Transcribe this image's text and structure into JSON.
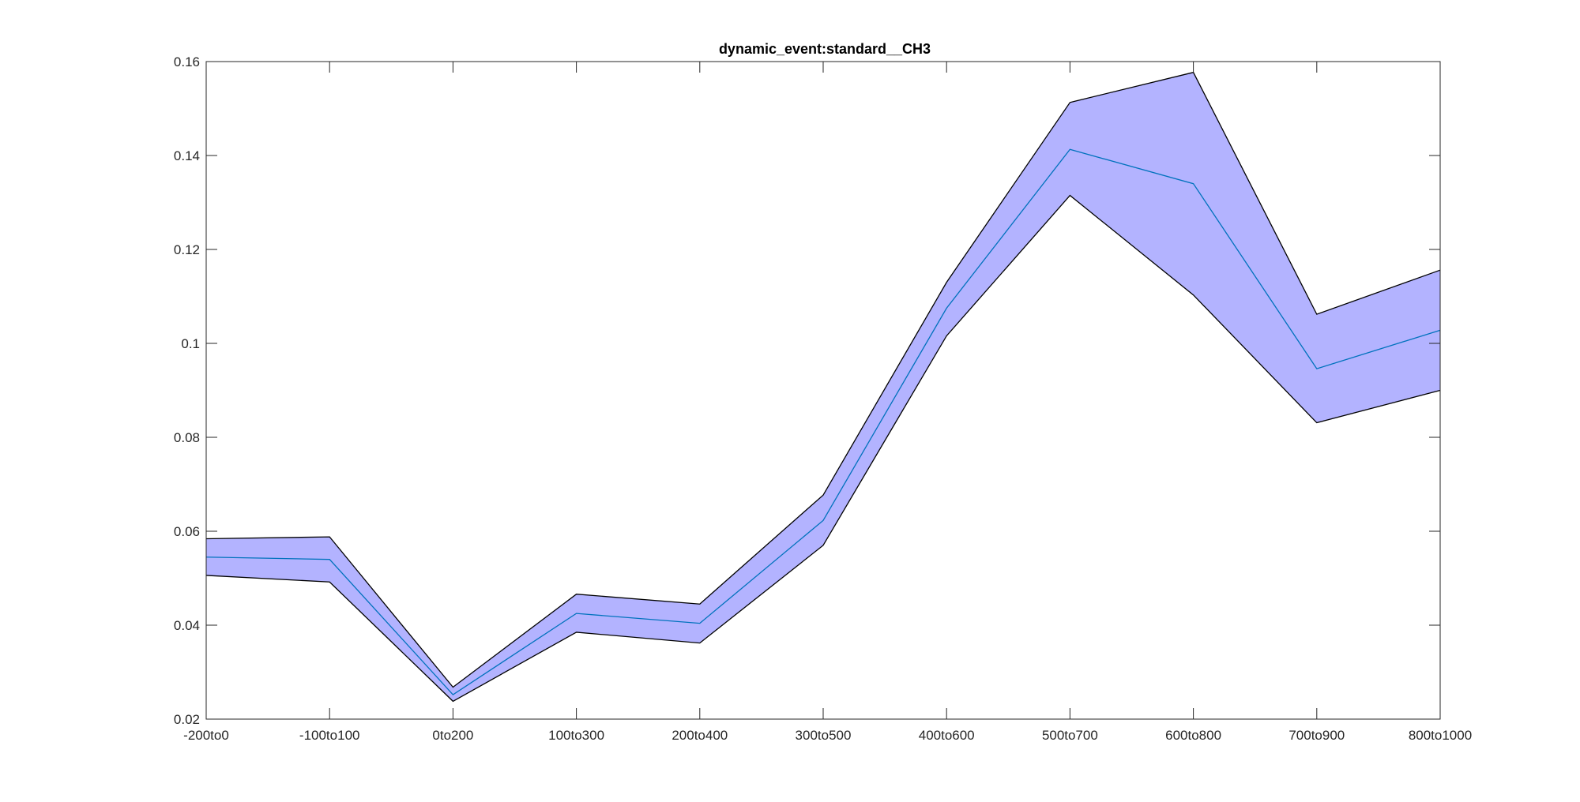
{
  "chart_data": {
    "type": "area",
    "title": "dynamic_event:standard__CH3",
    "xlabel": "",
    "ylabel": "",
    "categories": [
      "-200to0",
      "-100to100",
      "0to200",
      "100to300",
      "200to400",
      "300to500",
      "400to600",
      "500to700",
      "600to800",
      "700to900",
      "800to1000"
    ],
    "ylim": [
      0.02,
      0.16
    ],
    "yticks": [
      0.02,
      0.04,
      0.06,
      0.08,
      0.1,
      0.12,
      0.14,
      0.16
    ],
    "ytick_labels": [
      "0.02",
      "0.04",
      "0.06",
      "0.08",
      "0.1",
      "0.12",
      "0.14",
      "0.16"
    ],
    "grid": false,
    "series": [
      {
        "role": "mean",
        "color": "#0072BD",
        "values": [
          0.0545,
          0.054,
          0.0252,
          0.0425,
          0.0404,
          0.0623,
          0.1075,
          0.1413,
          0.134,
          0.0946,
          0.1028
        ]
      },
      {
        "role": "upper",
        "color": "#000000",
        "values": [
          0.0584,
          0.0588,
          0.0268,
          0.0466,
          0.0445,
          0.0677,
          0.113,
          0.1513,
          0.1577,
          0.1062,
          0.1156
        ]
      },
      {
        "role": "lower",
        "color": "#000000",
        "values": [
          0.0506,
          0.0492,
          0.0238,
          0.0385,
          0.0362,
          0.057,
          0.1016,
          0.1315,
          0.1103,
          0.0831,
          0.09
        ]
      }
    ],
    "band_fill": "#b3b3ff"
  }
}
